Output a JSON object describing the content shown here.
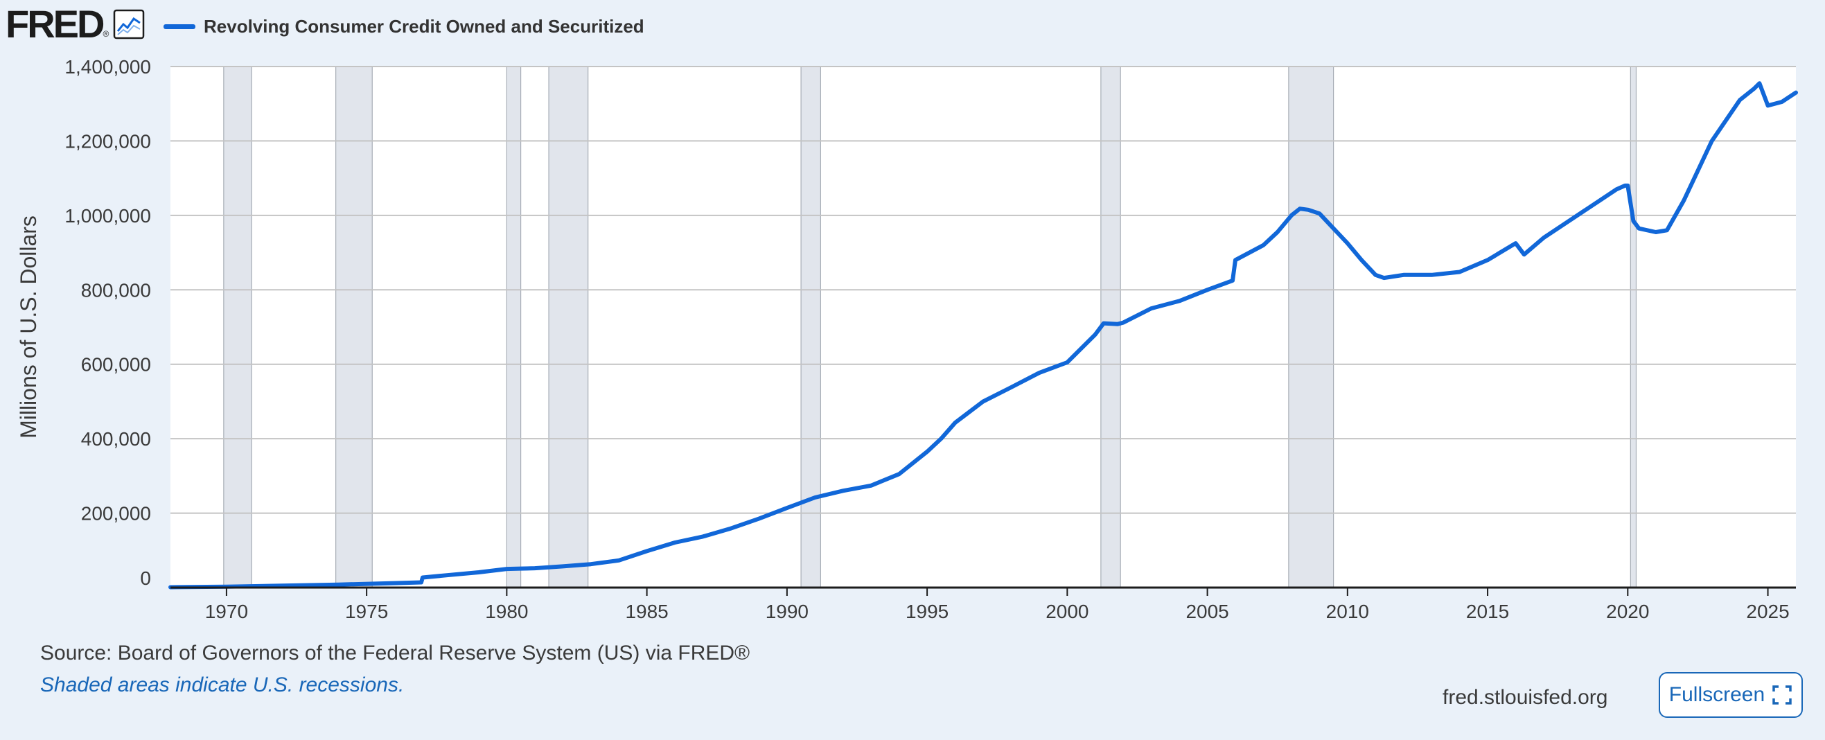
{
  "header": {
    "logo_text": "FRED",
    "logo_reg": "®",
    "legend_label": "Revolving Consumer Credit Owned and Securitized"
  },
  "footer": {
    "source": "Source: Board of Governors of the Federal Reserve System (US) via FRED®",
    "note": "Shaded areas indicate U.S. recessions.",
    "site": "fred.stlouisfed.org",
    "fullscreen_label": "Fullscreen"
  },
  "colors": {
    "series": "#1167d8",
    "recession": "#e1e5ec",
    "background": "#eaf1f9",
    "link": "#1967b8"
  },
  "chart_data": {
    "type": "line",
    "title": "Revolving Consumer Credit Owned and Securitized",
    "xlabel": "",
    "ylabel": "Millions of U.S. Dollars",
    "xlim": [
      1968.0,
      2026.0
    ],
    "ylim": [
      0,
      1400000
    ],
    "x_ticks": [
      1970,
      1975,
      1980,
      1985,
      1990,
      1995,
      2000,
      2005,
      2010,
      2015,
      2020,
      2025
    ],
    "x_tick_labels": [
      "1970",
      "1975",
      "1980",
      "1985",
      "1990",
      "1995",
      "2000",
      "2005",
      "2010",
      "2015",
      "2020",
      "2025"
    ],
    "y_ticks": [
      0,
      200000,
      400000,
      600000,
      800000,
      1000000,
      1200000,
      1400000
    ],
    "y_tick_labels": [
      "0",
      "200,000",
      "400,000",
      "600,000",
      "800,000",
      "1,000,000",
      "1,200,000",
      "1,400,000"
    ],
    "grid": true,
    "recessions": [
      [
        1969.9,
        1970.9
      ],
      [
        1973.9,
        1975.2
      ],
      [
        1980.0,
        1980.5
      ],
      [
        1981.5,
        1982.9
      ],
      [
        1990.5,
        1991.2
      ],
      [
        2001.2,
        2001.9
      ],
      [
        2007.9,
        2009.5
      ],
      [
        2020.1,
        2020.3
      ]
    ],
    "series": [
      {
        "name": "Revolving Consumer Credit Owned and Securitized",
        "x": [
          1968.0,
          1970.0,
          1972.0,
          1974.0,
          1976.0,
          1976.95,
          1977.0,
          1978.0,
          1979.0,
          1980.0,
          1980.5,
          1981.0,
          1982.0,
          1983.0,
          1984.0,
          1985.0,
          1986.0,
          1987.0,
          1988.0,
          1989.0,
          1990.0,
          1991.0,
          1992.0,
          1993.0,
          1994.0,
          1995.0,
          1995.5,
          1996.0,
          1997.0,
          1998.0,
          1999.0,
          2000.0,
          2001.0,
          2001.3,
          2001.8,
          2002.0,
          2003.0,
          2004.0,
          2005.0,
          2005.9,
          2006.0,
          2007.0,
          2007.5,
          2008.0,
          2008.3,
          2008.6,
          2009.0,
          2009.5,
          2010.0,
          2010.5,
          2011.0,
          2011.3,
          2012.0,
          2013.0,
          2014.0,
          2015.0,
          2016.0,
          2016.3,
          2017.0,
          2018.0,
          2019.0,
          2019.6,
          2019.9,
          2020.0,
          2020.2,
          2020.4,
          2021.0,
          2021.4,
          2022.0,
          2023.0,
          2024.0,
          2024.5,
          2024.7,
          2025.0,
          2025.5,
          2026.0
        ],
        "values": [
          1000,
          2500,
          5000,
          8000,
          12000,
          14000,
          27000,
          34000,
          41000,
          50000,
          51000,
          52000,
          57000,
          63000,
          73000,
          98000,
          121000,
          137000,
          159000,
          185000,
          214000,
          242000,
          260000,
          274000,
          305000,
          365000,
          400000,
          443000,
          500000,
          538000,
          577000,
          605000,
          680000,
          710000,
          708000,
          712000,
          750000,
          770000,
          800000,
          825000,
          880000,
          920000,
          955000,
          1000000,
          1018000,
          1015000,
          1005000,
          965000,
          925000,
          880000,
          840000,
          832000,
          840000,
          840000,
          848000,
          880000,
          925000,
          895000,
          940000,
          990000,
          1040000,
          1070000,
          1080000,
          1080000,
          985000,
          965000,
          955000,
          960000,
          1040000,
          1200000,
          1310000,
          1340000,
          1355000,
          1295000,
          1305000,
          1330000
        ]
      }
    ]
  }
}
